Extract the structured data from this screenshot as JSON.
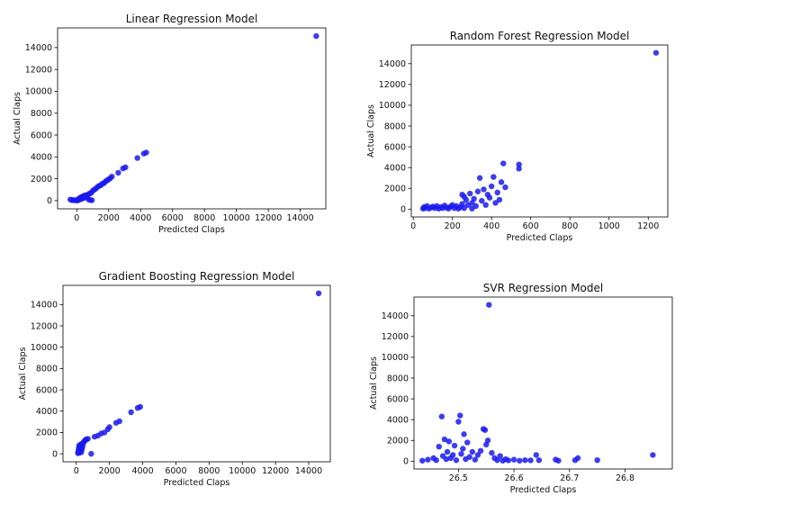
{
  "chart_data": [
    {
      "type": "scatter",
      "title": "Linear Regression Model",
      "xlabel": "Predicted Claps",
      "ylabel": "Actual Claps",
      "xlim": [
        -1200,
        15600
      ],
      "ylim": [
        -750,
        15800
      ],
      "xticks": [
        0,
        2000,
        4000,
        6000,
        8000,
        10000,
        12000,
        14000
      ],
      "yticks": [
        0,
        2000,
        4000,
        6000,
        8000,
        10000,
        12000,
        14000
      ],
      "series": [
        {
          "color": "#1a1aee",
          "points": [
            [
              -400,
              100
            ],
            [
              -300,
              40
            ],
            [
              -200,
              60
            ],
            [
              -100,
              20
            ],
            [
              0,
              50
            ],
            [
              50,
              10
            ],
            [
              100,
              150
            ],
            [
              150,
              80
            ],
            [
              200,
              250
            ],
            [
              250,
              130
            ],
            [
              300,
              350
            ],
            [
              350,
              200
            ],
            [
              400,
              400
            ],
            [
              450,
              250
            ],
            [
              500,
              480
            ],
            [
              550,
              300
            ],
            [
              600,
              500
            ],
            [
              650,
              350
            ],
            [
              700,
              550
            ],
            [
              750,
              100
            ],
            [
              800,
              650
            ],
            [
              850,
              50
            ],
            [
              900,
              700
            ],
            [
              950,
              40
            ],
            [
              1000,
              900
            ],
            [
              1100,
              1000
            ],
            [
              1200,
              1100
            ],
            [
              1300,
              1250
            ],
            [
              1400,
              1350
            ],
            [
              1500,
              1400
            ],
            [
              1600,
              1550
            ],
            [
              1700,
              1600
            ],
            [
              1800,
              1750
            ],
            [
              1900,
              1850
            ],
            [
              2000,
              1950
            ],
            [
              2100,
              2050
            ],
            [
              2200,
              2200
            ],
            [
              2600,
              2550
            ],
            [
              2900,
              2950
            ],
            [
              3050,
              3050
            ],
            [
              3800,
              3900
            ],
            [
              4200,
              4300
            ],
            [
              4350,
              4400
            ],
            [
              15000,
              15050
            ]
          ]
        }
      ]
    },
    {
      "type": "scatter",
      "title": "Random Forest Regression Model",
      "xlabel": "Predicted Claps",
      "ylabel": "Actual Claps",
      "xlim": [
        -10,
        1300
      ],
      "ylim": [
        -750,
        15800
      ],
      "xticks": [
        0,
        200,
        400,
        600,
        800,
        1000,
        1200
      ],
      "yticks": [
        0,
        2000,
        4000,
        6000,
        8000,
        10000,
        12000,
        14000
      ],
      "series": [
        {
          "color": "#1a1aee",
          "points": [
            [
              50,
              50
            ],
            [
              55,
              200
            ],
            [
              60,
              100
            ],
            [
              70,
              300
            ],
            [
              80,
              50
            ],
            [
              90,
              150
            ],
            [
              100,
              250
            ],
            [
              110,
              100
            ],
            [
              120,
              300
            ],
            [
              130,
              50
            ],
            [
              140,
              200
            ],
            [
              150,
              100
            ],
            [
              160,
              350
            ],
            [
              170,
              150
            ],
            [
              180,
              50
            ],
            [
              190,
              250
            ],
            [
              200,
              400
            ],
            [
              210,
              100
            ],
            [
              220,
              300
            ],
            [
              230,
              50
            ],
            [
              240,
              200
            ],
            [
              250,
              1400
            ],
            [
              250,
              500
            ],
            [
              260,
              1200
            ],
            [
              260,
              100
            ],
            [
              270,
              900
            ],
            [
              280,
              400
            ],
            [
              290,
              1500
            ],
            [
              300,
              600
            ],
            [
              300,
              50
            ],
            [
              310,
              1000
            ],
            [
              320,
              300
            ],
            [
              330,
              1700
            ],
            [
              340,
              3000
            ],
            [
              350,
              800
            ],
            [
              360,
              1900
            ],
            [
              370,
              400
            ],
            [
              380,
              1400
            ],
            [
              390,
              1100
            ],
            [
              400,
              2200
            ],
            [
              410,
              3100
            ],
            [
              420,
              600
            ],
            [
              430,
              1600
            ],
            [
              440,
              900
            ],
            [
              450,
              2600
            ],
            [
              460,
              4400
            ],
            [
              470,
              2100
            ],
            [
              540,
              4300
            ],
            [
              540,
              3900
            ],
            [
              1240,
              15050
            ]
          ]
        }
      ]
    },
    {
      "type": "scatter",
      "title": "Gradient Boosting Regression Model",
      "xlabel": "Predicted Claps",
      "ylabel": "Actual Claps",
      "xlim": [
        -800,
        15300
      ],
      "ylim": [
        -750,
        15800
      ],
      "xticks": [
        0,
        2000,
        4000,
        6000,
        8000,
        10000,
        12000,
        14000
      ],
      "yticks": [
        0,
        2000,
        4000,
        6000,
        8000,
        10000,
        12000,
        14000
      ],
      "series": [
        {
          "color": "#1a1aee",
          "points": [
            [
              100,
              50
            ],
            [
              120,
              200
            ],
            [
              140,
              400
            ],
            [
              160,
              600
            ],
            [
              180,
              800
            ],
            [
              200,
              100
            ],
            [
              220,
              300
            ],
            [
              240,
              500
            ],
            [
              260,
              700
            ],
            [
              280,
              900
            ],
            [
              300,
              150
            ],
            [
              320,
              350
            ],
            [
              350,
              550
            ],
            [
              380,
              750
            ],
            [
              400,
              1000
            ],
            [
              450,
              1100
            ],
            [
              500,
              1200
            ],
            [
              550,
              1300
            ],
            [
              600,
              1350
            ],
            [
              700,
              1400
            ],
            [
              900,
              0
            ],
            [
              1100,
              1600
            ],
            [
              1300,
              1700
            ],
            [
              1500,
              1900
            ],
            [
              1700,
              2000
            ],
            [
              1900,
              2300
            ],
            [
              2000,
              2500
            ],
            [
              2400,
              2900
            ],
            [
              2600,
              3050
            ],
            [
              3300,
              3900
            ],
            [
              3700,
              4300
            ],
            [
              3850,
              4400
            ],
            [
              14600,
              15050
            ]
          ]
        }
      ]
    },
    {
      "type": "scatter",
      "title": "SVR Regression Model",
      "xlabel": "Predicted Claps",
      "ylabel": "Actual Claps",
      "xlim": [
        26.42,
        26.885
      ],
      "ylim": [
        -750,
        15800
      ],
      "xticks": [
        26.5,
        26.6,
        26.7,
        26.8
      ],
      "yticks": [
        0,
        2000,
        4000,
        6000,
        8000,
        10000,
        12000,
        14000
      ],
      "series": [
        {
          "color": "#1a1aee",
          "points": [
            [
              26.435,
              50
            ],
            [
              26.445,
              150
            ],
            [
              26.455,
              300
            ],
            [
              26.46,
              100
            ],
            [
              26.465,
              1400
            ],
            [
              26.47,
              4300
            ],
            [
              26.472,
              500
            ],
            [
              26.475,
              2100
            ],
            [
              26.478,
              200
            ],
            [
              26.48,
              900
            ],
            [
              26.483,
              1900
            ],
            [
              26.486,
              300
            ],
            [
              26.49,
              600
            ],
            [
              26.493,
              1500
            ],
            [
              26.496,
              100
            ],
            [
              26.5,
              3800
            ],
            [
              26.503,
              4400
            ],
            [
              26.505,
              700
            ],
            [
              26.508,
              1200
            ],
            [
              26.51,
              2600
            ],
            [
              26.513,
              200
            ],
            [
              26.516,
              1800
            ],
            [
              26.52,
              400
            ],
            [
              26.525,
              900
            ],
            [
              26.53,
              150
            ],
            [
              26.535,
              600
            ],
            [
              26.54,
              1000
            ],
            [
              26.545,
              3100
            ],
            [
              26.548,
              3000
            ],
            [
              26.55,
              1600
            ],
            [
              26.553,
              2000
            ],
            [
              26.555,
              15050
            ],
            [
              26.56,
              800
            ],
            [
              26.565,
              300
            ],
            [
              26.57,
              100
            ],
            [
              26.575,
              500
            ],
            [
              26.58,
              50
            ],
            [
              26.585,
              200
            ],
            [
              26.59,
              80
            ],
            [
              26.6,
              150
            ],
            [
              26.61,
              50
            ],
            [
              26.62,
              100
            ],
            [
              26.63,
              80
            ],
            [
              26.64,
              600
            ],
            [
              26.645,
              100
            ],
            [
              26.675,
              150
            ],
            [
              26.68,
              50
            ],
            [
              26.71,
              100
            ],
            [
              26.715,
              300
            ],
            [
              26.75,
              100
            ],
            [
              26.85,
              600
            ]
          ]
        }
      ]
    }
  ]
}
